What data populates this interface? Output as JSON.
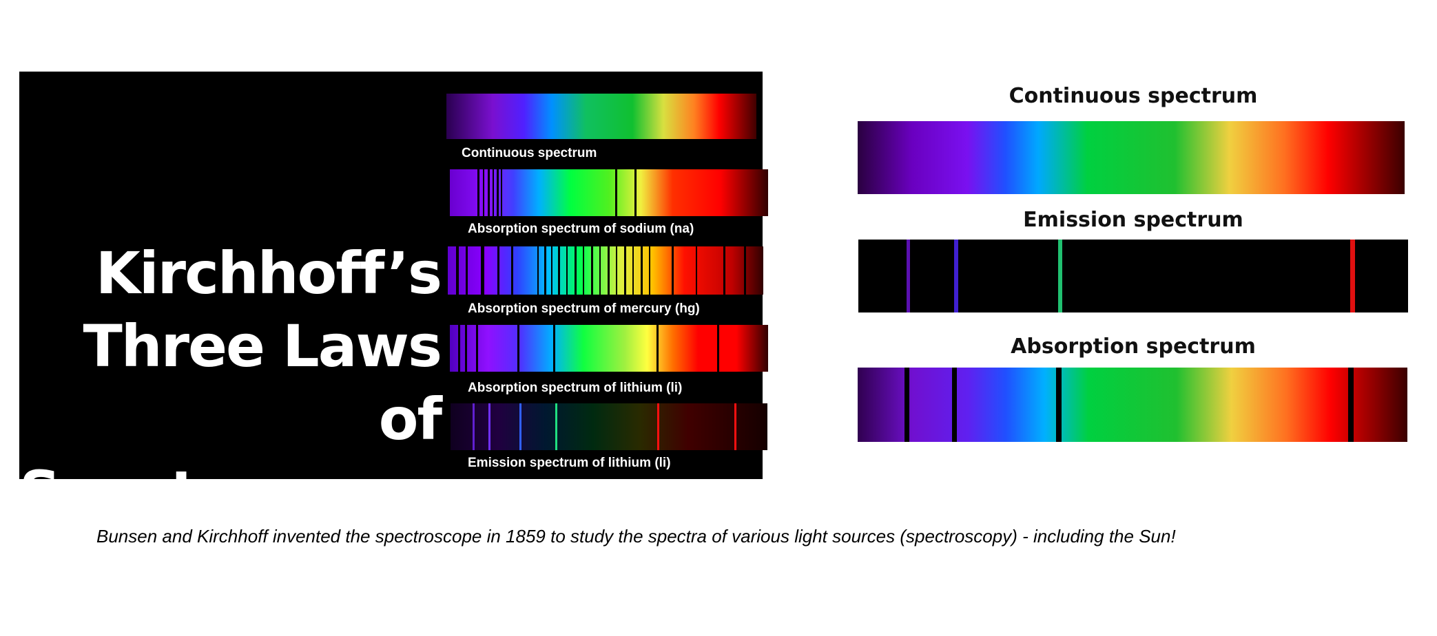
{
  "left_panel": {
    "title_lines": [
      "Kirchhoff’s",
      "Three Laws of",
      "Spectroscopy"
    ],
    "strips": [
      {
        "caption": "Continuous spectrum",
        "type": "continuous"
      },
      {
        "caption": "Absorption spectrum of sodium (na)",
        "type": "absorption"
      },
      {
        "caption": "Absorption spectrum of mercury (hg)",
        "type": "absorption"
      },
      {
        "caption": "Absorption spectrum of lithium (li)",
        "type": "absorption"
      },
      {
        "caption": "Emission spectrum of lithium (li)",
        "type": "emission"
      }
    ]
  },
  "right_panel": {
    "spectra": [
      {
        "heading": "Continuous spectrum",
        "type": "continuous"
      },
      {
        "heading": "Emission spectrum",
        "type": "emission"
      },
      {
        "heading": "Absorption spectrum",
        "type": "absorption"
      }
    ]
  },
  "caption": "Bunsen and Kirchhoff invented the spectroscope in 1859 to study the spectra of various light sources (spectroscopy) - including the Sun!",
  "colors": {
    "background": "#ffffff",
    "panel": "#000000",
    "spectrum": [
      "#2a0040",
      "#6a00c0",
      "#8a00ff",
      "#1a40ff",
      "#00a0ff",
      "#00d040",
      "#20c030",
      "#f0e040",
      "#ff9a20",
      "#ff0000",
      "#3a0000"
    ]
  }
}
